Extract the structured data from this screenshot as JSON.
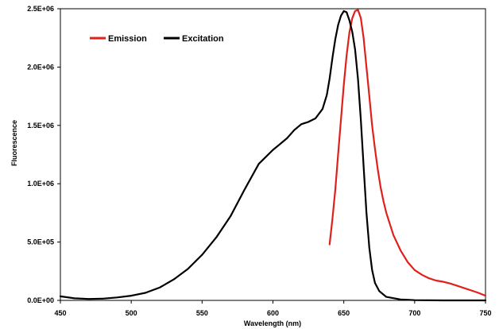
{
  "chart_data": {
    "type": "line",
    "title": "",
    "xlabel": "Wavelength (nm)",
    "ylabel": "Fluorescence",
    "xlim": [
      450,
      750
    ],
    "ylim": [
      0,
      2500000
    ],
    "x_ticks": [
      450,
      500,
      550,
      600,
      650,
      700,
      750
    ],
    "x_tick_labels": [
      "450",
      "500",
      "550",
      "600",
      "650",
      "700",
      "750"
    ],
    "y_ticks": [
      0,
      500000,
      1000000,
      1500000,
      2000000,
      2500000
    ],
    "y_tick_labels": [
      "0.0E+00",
      "5.0E+05",
      "1.0E+06",
      "1.5E+06",
      "2.0E+06",
      "2.5E+06"
    ],
    "grid": false,
    "legend_position": "top-left",
    "series": [
      {
        "name": "Emission",
        "color": "#e0201b",
        "x": [
          640,
          642,
          644,
          646,
          648,
          650,
          652,
          654,
          656,
          658,
          660,
          662,
          664,
          666,
          668,
          670,
          672,
          674,
          676,
          678,
          680,
          685,
          690,
          695,
          700,
          705,
          710,
          715,
          720,
          725,
          730,
          735,
          740,
          745,
          750
        ],
        "y": [
          480000,
          700000,
          950000,
          1250000,
          1550000,
          1850000,
          2100000,
          2300000,
          2420000,
          2480000,
          2490000,
          2420000,
          2250000,
          2000000,
          1750000,
          1500000,
          1300000,
          1120000,
          970000,
          850000,
          750000,
          560000,
          430000,
          330000,
          260000,
          220000,
          190000,
          170000,
          160000,
          145000,
          125000,
          105000,
          85000,
          65000,
          40000
        ]
      },
      {
        "name": "Excitation",
        "color": "#000000",
        "x": [
          450,
          460,
          470,
          480,
          490,
          500,
          510,
          520,
          530,
          540,
          550,
          560,
          570,
          580,
          590,
          600,
          605,
          610,
          615,
          620,
          625,
          630,
          635,
          638,
          640,
          642,
          644,
          646,
          648,
          650,
          652,
          654,
          656,
          658,
          660,
          662,
          664,
          666,
          668,
          670,
          672,
          675,
          680,
          690,
          700,
          720,
          750
        ],
        "y": [
          35000,
          18000,
          12000,
          15000,
          25000,
          40000,
          65000,
          110000,
          180000,
          270000,
          390000,
          540000,
          720000,
          950000,
          1170000,
          1290000,
          1340000,
          1390000,
          1460000,
          1510000,
          1530000,
          1560000,
          1640000,
          1760000,
          1900000,
          2080000,
          2240000,
          2360000,
          2440000,
          2480000,
          2470000,
          2400000,
          2300000,
          2150000,
          1900000,
          1550000,
          1150000,
          750000,
          450000,
          260000,
          150000,
          80000,
          30000,
          8000,
          2000,
          0,
          0
        ]
      }
    ]
  }
}
